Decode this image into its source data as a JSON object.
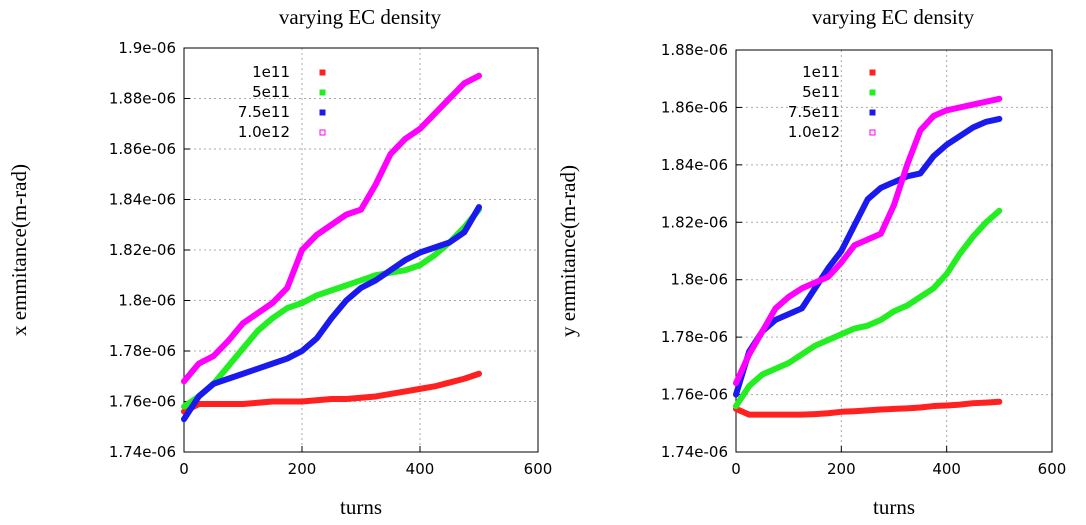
{
  "chart_data": [
    {
      "type": "line",
      "title": "varying EC density",
      "xlabel": "turns",
      "ylabel": "x emmitance(m-rad)",
      "xlim": [
        0,
        600
      ],
      "xticks": [
        0,
        200,
        400,
        600
      ],
      "ylim": [
        1.74e-06,
        1.9e-06
      ],
      "yticks": [
        {
          "value": 1.74e-06,
          "label": "1.74e-06"
        },
        {
          "value": 1.76e-06,
          "label": "1.76e-06"
        },
        {
          "value": 1.78e-06,
          "label": "1.78e-06"
        },
        {
          "value": 1.8e-06,
          "label": "1.8e-06"
        },
        {
          "value": 1.82e-06,
          "label": "1.82e-06"
        },
        {
          "value": 1.84e-06,
          "label": "1.84e-06"
        },
        {
          "value": 1.86e-06,
          "label": "1.86e-06"
        },
        {
          "value": 1.88e-06,
          "label": "1.88e-06"
        },
        {
          "value": 1.9e-06,
          "label": "1.9e-06"
        }
      ],
      "grid": true,
      "legend": "top-left",
      "x": [
        0,
        25,
        50,
        75,
        100,
        125,
        150,
        175,
        200,
        225,
        250,
        275,
        300,
        325,
        350,
        375,
        400,
        425,
        450,
        475,
        500
      ],
      "series": [
        {
          "name": "1e11",
          "color": "#ff2020",
          "values": [
            1.756e-06,
            1.759e-06,
            1.759e-06,
            1.759e-06,
            1.759e-06,
            1.7595e-06,
            1.76e-06,
            1.76e-06,
            1.76e-06,
            1.7605e-06,
            1.761e-06,
            1.761e-06,
            1.7615e-06,
            1.762e-06,
            1.763e-06,
            1.764e-06,
            1.765e-06,
            1.766e-06,
            1.7675e-06,
            1.769e-06,
            1.771e-06
          ]
        },
        {
          "name": "5e11",
          "color": "#22ee22",
          "values": [
            1.758e-06,
            1.762e-06,
            1.767e-06,
            1.774e-06,
            1.781e-06,
            1.788e-06,
            1.793e-06,
            1.797e-06,
            1.799e-06,
            1.802e-06,
            1.804e-06,
            1.806e-06,
            1.808e-06,
            1.81e-06,
            1.811e-06,
            1.812e-06,
            1.814e-06,
            1.818e-06,
            1.823e-06,
            1.829e-06,
            1.836e-06
          ]
        },
        {
          "name": "7.5e11",
          "color": "#1a1aee",
          "values": [
            1.753e-06,
            1.762e-06,
            1.767e-06,
            1.769e-06,
            1.771e-06,
            1.773e-06,
            1.775e-06,
            1.777e-06,
            1.78e-06,
            1.785e-06,
            1.793e-06,
            1.8e-06,
            1.805e-06,
            1.808e-06,
            1.812e-06,
            1.816e-06,
            1.819e-06,
            1.821e-06,
            1.823e-06,
            1.827e-06,
            1.837e-06
          ]
        },
        {
          "name": "1.0e12",
          "color": "#ff00ff",
          "values": [
            1.768e-06,
            1.775e-06,
            1.778e-06,
            1.784e-06,
            1.791e-06,
            1.795e-06,
            1.799e-06,
            1.805e-06,
            1.82e-06,
            1.826e-06,
            1.83e-06,
            1.834e-06,
            1.836e-06,
            1.846e-06,
            1.858e-06,
            1.864e-06,
            1.868e-06,
            1.874e-06,
            1.88e-06,
            1.886e-06,
            1.889e-06
          ]
        }
      ]
    },
    {
      "type": "line",
      "title": "varying EC density",
      "xlabel": "turns",
      "ylabel": "y emmitance(m-rad)",
      "xlim": [
        0,
        600
      ],
      "xticks": [
        0,
        200,
        400,
        600
      ],
      "ylim": [
        1.74e-06,
        1.88e-06
      ],
      "yticks": [
        {
          "value": 1.74e-06,
          "label": "1.74e-06"
        },
        {
          "value": 1.76e-06,
          "label": "1.76e-06"
        },
        {
          "value": 1.78e-06,
          "label": "1.78e-06"
        },
        {
          "value": 1.8e-06,
          "label": "1.8e-06"
        },
        {
          "value": 1.82e-06,
          "label": "1.82e-06"
        },
        {
          "value": 1.84e-06,
          "label": "1.84e-06"
        },
        {
          "value": 1.86e-06,
          "label": "1.86e-06"
        },
        {
          "value": 1.88e-06,
          "label": "1.88e-06"
        }
      ],
      "grid": true,
      "legend": "top-left",
      "x": [
        0,
        25,
        50,
        75,
        100,
        125,
        150,
        175,
        200,
        225,
        250,
        275,
        300,
        325,
        350,
        375,
        400,
        425,
        450,
        475,
        500
      ],
      "series": [
        {
          "name": "1e11",
          "color": "#ff2020",
          "values": [
            1.755e-06,
            1.753e-06,
            1.753e-06,
            1.753e-06,
            1.753e-06,
            1.753e-06,
            1.7532e-06,
            1.7535e-06,
            1.754e-06,
            1.7542e-06,
            1.7545e-06,
            1.7548e-06,
            1.755e-06,
            1.7552e-06,
            1.7555e-06,
            1.756e-06,
            1.7562e-06,
            1.7565e-06,
            1.757e-06,
            1.7572e-06,
            1.7575e-06
          ]
        },
        {
          "name": "5e11",
          "color": "#22ee22",
          "values": [
            1.756e-06,
            1.763e-06,
            1.767e-06,
            1.769e-06,
            1.771e-06,
            1.774e-06,
            1.777e-06,
            1.779e-06,
            1.781e-06,
            1.783e-06,
            1.784e-06,
            1.786e-06,
            1.789e-06,
            1.791e-06,
            1.794e-06,
            1.797e-06,
            1.802e-06,
            1.809e-06,
            1.815e-06,
            1.82e-06,
            1.824e-06
          ]
        },
        {
          "name": "7.5e11",
          "color": "#1a1aee",
          "values": [
            1.76e-06,
            1.775e-06,
            1.782e-06,
            1.786e-06,
            1.788e-06,
            1.79e-06,
            1.797e-06,
            1.804e-06,
            1.81e-06,
            1.819e-06,
            1.828e-06,
            1.832e-06,
            1.834e-06,
            1.836e-06,
            1.837e-06,
            1.843e-06,
            1.847e-06,
            1.85e-06,
            1.853e-06,
            1.855e-06,
            1.856e-06
          ]
        },
        {
          "name": "1.0e12",
          "color": "#ff00ff",
          "values": [
            1.764e-06,
            1.774e-06,
            1.782e-06,
            1.79e-06,
            1.794e-06,
            1.797e-06,
            1.799e-06,
            1.801e-06,
            1.806e-06,
            1.812e-06,
            1.814e-06,
            1.816e-06,
            1.826e-06,
            1.84e-06,
            1.852e-06,
            1.857e-06,
            1.859e-06,
            1.86e-06,
            1.861e-06,
            1.862e-06,
            1.863e-06
          ]
        }
      ]
    }
  ]
}
